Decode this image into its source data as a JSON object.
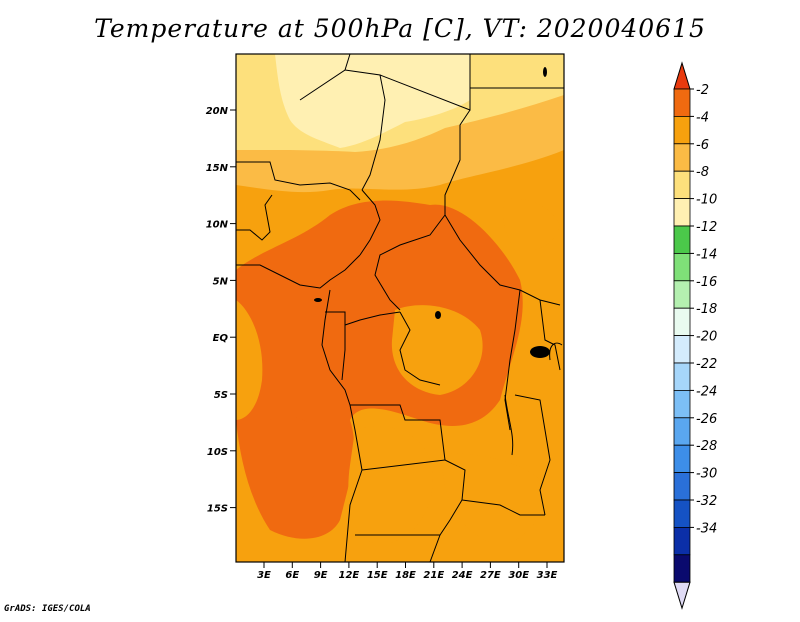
{
  "title": "Temperature at 500hPa [C], VT: 2020040615",
  "footer": "GrADS: IGES/COLA",
  "map": {
    "lat_labels": [
      "20N",
      "15N",
      "10N",
      "5N",
      "EQ",
      "5S",
      "10S",
      "15S"
    ],
    "lon_labels": [
      "3E",
      "6E",
      "9E",
      "12E",
      "15E",
      "18E",
      "21E",
      "24E",
      "27E",
      "30E",
      "33E"
    ],
    "field_colors": {
      "warmest": "#f06a10",
      "warm": "#f7a10e",
      "mid": "#fbbb45",
      "cool": "#fde07c",
      "coolest": "#fff0b2"
    }
  },
  "colorbar": {
    "labels": [
      "-2",
      "-4",
      "-6",
      "-8",
      "-10",
      "-12",
      "-14",
      "-16",
      "-18",
      "-20",
      "-22",
      "-24",
      "-26",
      "-28",
      "-30",
      "-32",
      "-34"
    ],
    "colors": [
      "#e0dbf5",
      "#0a0a6e",
      "#0b2fa8",
      "#1552c4",
      "#2a70d9",
      "#3d8ee8",
      "#5aa7f0",
      "#7cbff6",
      "#a6d6fa",
      "#d4ecfd",
      "#e9fbf0",
      "#b4f0b0",
      "#7fe078",
      "#4bc84a",
      "#fff0b2",
      "#fde07c",
      "#fbbb45",
      "#f7a10e",
      "#f06a10",
      "#e93a0e"
    ]
  }
}
